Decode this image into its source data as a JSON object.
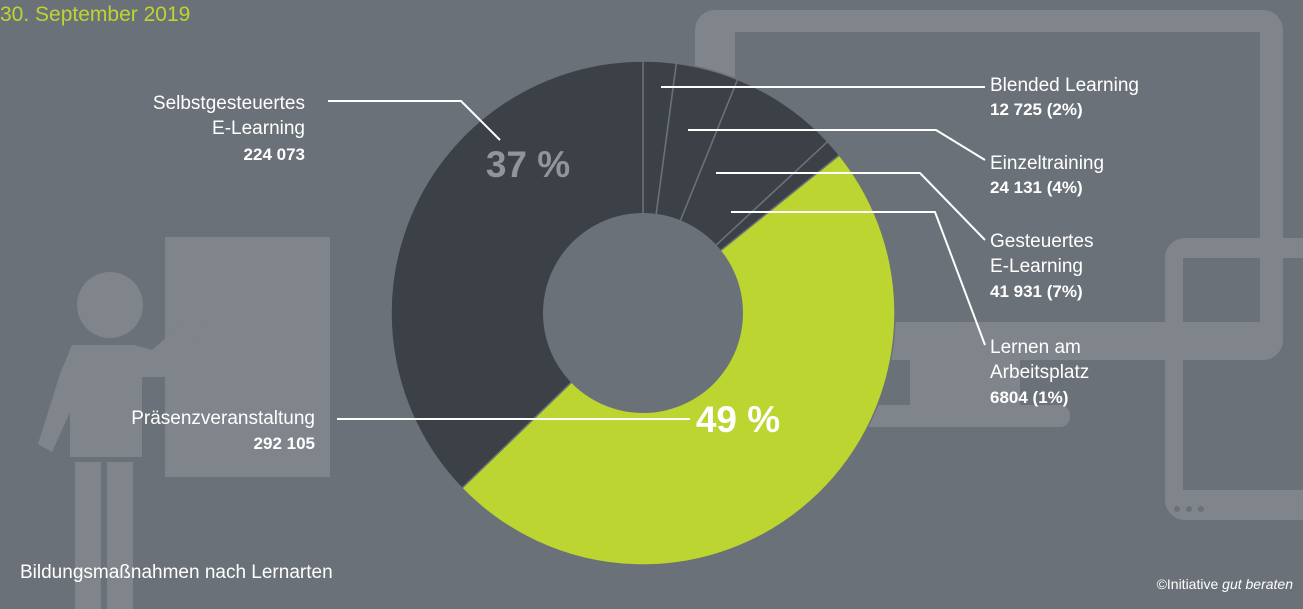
{
  "date": "30. September 2019",
  "footer_title": "Bildungsmaßnahmen nach Lernarten",
  "credit": {
    "prefix": "©Initiative ",
    "brand": "gut beraten"
  },
  "colors": {
    "background": "#6b7178",
    "accent": "#bdd530",
    "dark_segment": "#3c4148",
    "hole": "#6b7178"
  },
  "chart_data": {
    "type": "pie",
    "variant": "donut",
    "title": "Bildungsmaßnahmen nach Lernarten",
    "subtitle": "30. September 2019",
    "slices": [
      {
        "label_lines": [
          "Präsenzveranstaltung"
        ],
        "value": 292105,
        "value_text": "292 105",
        "percent": 49,
        "percent_text": "49 %",
        "color": "#bdd530"
      },
      {
        "label_lines": [
          "Selbstgesteuertes",
          "E-Learning"
        ],
        "value": 224073,
        "value_text": "224 073",
        "percent": 37,
        "percent_text": "37 %",
        "color": "#3c4148"
      },
      {
        "label_lines": [
          "Blended Learning"
        ],
        "value": 12725,
        "value_text": "12 725 (2%)",
        "percent": 2,
        "color": "#3c4148"
      },
      {
        "label_lines": [
          "Einzeltraining"
        ],
        "value": 24131,
        "value_text": "24 131 (4%)",
        "percent": 4,
        "color": "#3c4148"
      },
      {
        "label_lines": [
          "Gesteuertes",
          "E-Learning"
        ],
        "value": 41931,
        "value_text": "41 931 (7%)",
        "percent": 7,
        "color": "#3c4148"
      },
      {
        "label_lines": [
          "Lernen am",
          "Arbeitsplatz"
        ],
        "value": 6804,
        "value_text": "6804 (1%)",
        "percent": 1,
        "color": "#3c4148"
      }
    ]
  }
}
